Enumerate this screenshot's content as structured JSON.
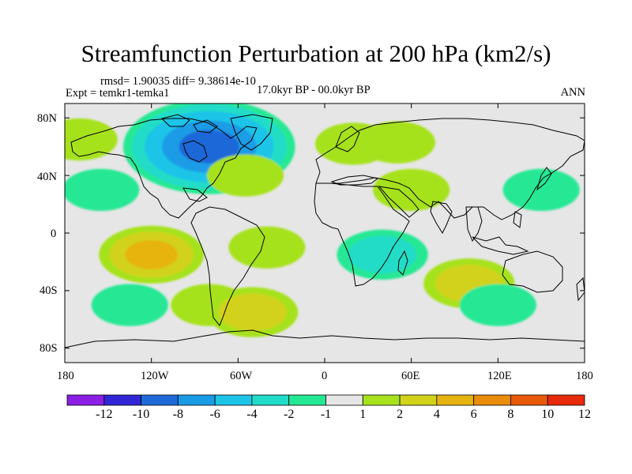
{
  "title": "Streamfunction Perturbation at 200 hPa (km2/s)",
  "stats": "rmsd= 1.90035 diff= 9.38614e-10",
  "experiment": "Expt = temkr1-temka1",
  "period": "17.0kyr BP - 00.0kyr BP",
  "season": "ANN",
  "lat_labels": [
    "80N",
    "40N",
    "0",
    "40S",
    "80S"
  ],
  "lon_labels": [
    "180",
    "120W",
    "60W",
    "0",
    "60E",
    "120E",
    "180"
  ],
  "colorbar": {
    "labels": [
      "-12",
      "-10",
      "-8",
      "-6",
      "-4",
      "-2",
      "-1",
      "1",
      "2",
      "4",
      "6",
      "8",
      "10",
      "12"
    ],
    "colors": [
      "#8c1fe6",
      "#3126d6",
      "#1e68d8",
      "#1a9be6",
      "#1ec4e8",
      "#20dcc8",
      "#25e894",
      "#e6e6e6",
      "#a6e21e",
      "#d2d21a",
      "#e6b410",
      "#e88c0a",
      "#e85a0a",
      "#e82a0a"
    ]
  },
  "chart_data": {
    "type": "heatmap",
    "variable": "streamfunction perturbation at 200 hPa",
    "units": "km2/s",
    "x_range": [
      -180,
      180
    ],
    "y_range": [
      -90,
      90
    ],
    "levels": [
      -12,
      -10,
      -8,
      -6,
      -4,
      -2,
      -1,
      1,
      2,
      4,
      6,
      8,
      10,
      12
    ],
    "anomaly_centers": [
      {
        "lon": -80,
        "lat": 60,
        "value": -9
      },
      {
        "lon": -170,
        "lat": 65,
        "value": 2
      },
      {
        "lon": -55,
        "lat": 40,
        "value": 2
      },
      {
        "lon": 50,
        "lat": 63,
        "value": 2
      },
      {
        "lon": 20,
        "lat": 62,
        "value": 2
      },
      {
        "lon": 60,
        "lat": 30,
        "value": 2
      },
      {
        "lon": -155,
        "lat": 30,
        "value": -2
      },
      {
        "lon": 150,
        "lat": 30,
        "value": -2
      },
      {
        "lon": -120,
        "lat": -15,
        "value": 4
      },
      {
        "lon": -40,
        "lat": -10,
        "value": 2
      },
      {
        "lon": 40,
        "lat": -15,
        "value": -3
      },
      {
        "lon": 100,
        "lat": -35,
        "value": 3
      },
      {
        "lon": 120,
        "lat": -50,
        "value": -2
      },
      {
        "lon": -135,
        "lat": -50,
        "value": -2
      },
      {
        "lon": -80,
        "lat": -50,
        "value": 2
      },
      {
        "lon": -50,
        "lat": -55,
        "value": 3
      }
    ]
  }
}
